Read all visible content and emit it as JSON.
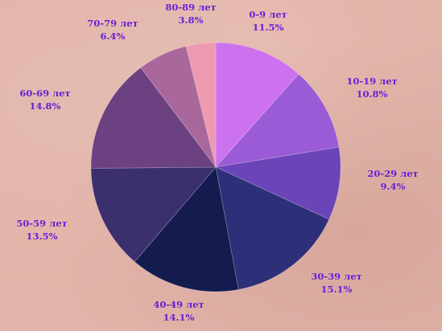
{
  "chart_data": {
    "type": "pie",
    "title": "",
    "legend": "none",
    "slices": [
      {
        "label": "0-9 лет",
        "value": 11.5,
        "display": "11.5%",
        "color": "#cd72ee"
      },
      {
        "label": "10-19 лет",
        "value": 10.8,
        "display": "10.8%",
        "color": "#9b5bd6"
      },
      {
        "label": "20-29 лет",
        "value": 9.4,
        "display": "9.4%",
        "color": "#6a45b8"
      },
      {
        "label": "30-39 лет",
        "value": 15.1,
        "display": "15.1%",
        "color": "#2d2f78"
      },
      {
        "label": "40-49 лет",
        "value": 14.1,
        "display": "14.1%",
        "color": "#141b4f"
      },
      {
        "label": "50-59 лет",
        "value": 13.5,
        "display": "13.5%",
        "color": "#3b2f6e"
      },
      {
        "label": "60-69 лет",
        "value": 14.8,
        "display": "14.8%",
        "color": "#6b4181"
      },
      {
        "label": "70-79 лет",
        "value": 6.4,
        "display": "6.4%",
        "color": "#a9689c"
      },
      {
        "label": "80-89 лет",
        "value": 3.8,
        "display": "3.8%",
        "color": "#ee9ab0"
      }
    ]
  }
}
